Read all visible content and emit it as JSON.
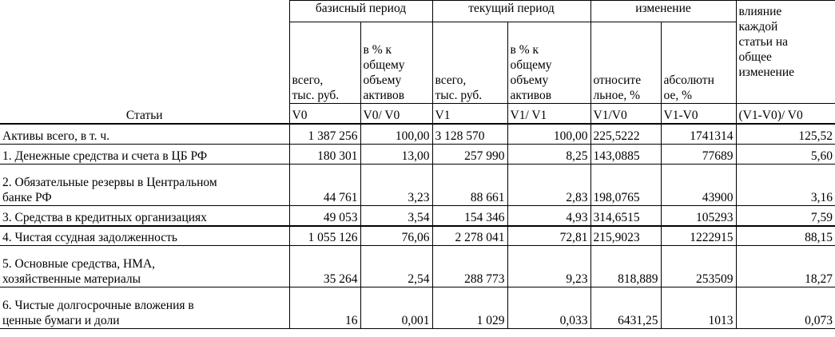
{
  "header": {
    "articles_label": "Статьи",
    "groups": {
      "base": "базисный период",
      "current": "текущий период",
      "change": "изменение",
      "influence": [
        "влияние",
        "каждой",
        "статьи на",
        "общее",
        "изменение"
      ]
    },
    "sub": {
      "v0_total": [
        "всего,",
        "тыс. руб."
      ],
      "v0_pct": [
        "в % к",
        "общему",
        "объему",
        "активов"
      ],
      "v1_total": [
        "всего,",
        "тыс. руб."
      ],
      "v1_pct": [
        "в % к",
        "общему",
        "объему",
        "активов"
      ],
      "rel": [
        "относите",
        "льное, %"
      ],
      "abs": [
        "абсолютн",
        "ое, %"
      ]
    },
    "codes": [
      "V0",
      "V0/  V0",
      "V1",
      "V1/  V1",
      "V1/V0",
      "V1-V0",
      "(V1-V0)/  V0"
    ]
  },
  "rows": [
    {
      "label": [
        "Активы всего, в т. ч."
      ],
      "v0": "1 387 256",
      "v0_pct": "100,00",
      "v1": "3 128 570",
      "v1_pct": "100,00",
      "rel": "225,5222",
      "abs": "1741314",
      "infl": "125,52"
    },
    {
      "label": [
        "1. Денежные средства и счета в ЦБ РФ"
      ],
      "v0": "180 301",
      "v0_pct": "13,00",
      "v1": "257 990",
      "v1_pct": "8,25",
      "rel": "143,0885",
      "abs": "77689",
      "infl": "5,60"
    },
    {
      "label": [
        "2. Обязательные резервы в Центральном",
        "банке РФ"
      ],
      "v0": "44 761",
      "v0_pct": "3,23",
      "v1": "88 661",
      "v1_pct": "2,83",
      "rel": "198,0765",
      "abs": "43900",
      "infl": "3,16"
    },
    {
      "label": [
        "3. Средства в кредитных организациях"
      ],
      "v0": "49 053",
      "v0_pct": "3,54",
      "v1": "154 346",
      "v1_pct": "4,93",
      "rel": "314,6515",
      "abs": "105293",
      "infl": "7,59"
    },
    {
      "label": [
        "4. Чистая ссудная задолженность"
      ],
      "v0": "1 055 126",
      "v0_pct": "76,06",
      "v1": "2 278 041",
      "v1_pct": "72,81",
      "rel": "215,9023",
      "abs": "1222915",
      "infl": "88,15"
    },
    {
      "label": [
        "5. Основные средства, НМА,",
        "хозяйственные материалы"
      ],
      "v0": "35 264",
      "v0_pct": "2,54",
      "v1": "288 773",
      "v1_pct": "9,23",
      "rel": "818,889",
      "abs": "253509",
      "infl": "18,27"
    },
    {
      "label": [
        "6. Чистые долгосрочные вложения в",
        "ценные бумаги и доли"
      ],
      "v0": "16",
      "v0_pct": "0,001",
      "v1": "1 029",
      "v1_pct": "0,033",
      "rel": "6431,25",
      "abs": "1013",
      "infl": "0,073"
    }
  ]
}
